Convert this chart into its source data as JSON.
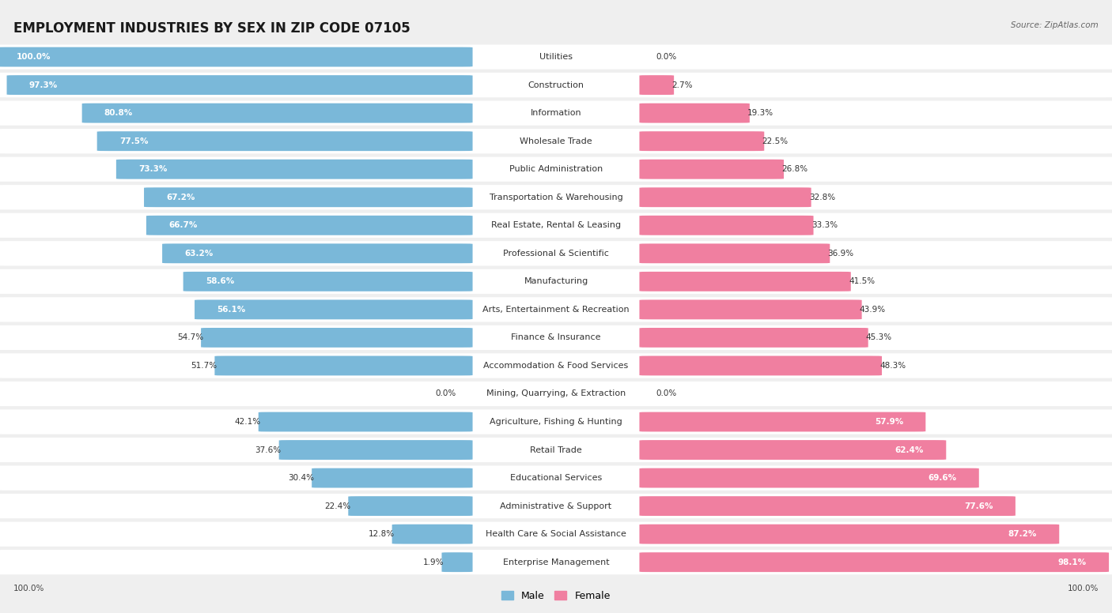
{
  "title": "EMPLOYMENT INDUSTRIES BY SEX IN ZIP CODE 07105",
  "source": "Source: ZipAtlas.com",
  "categories": [
    "Utilities",
    "Construction",
    "Information",
    "Wholesale Trade",
    "Public Administration",
    "Transportation & Warehousing",
    "Real Estate, Rental & Leasing",
    "Professional & Scientific",
    "Manufacturing",
    "Arts, Entertainment & Recreation",
    "Finance & Insurance",
    "Accommodation & Food Services",
    "Mining, Quarrying, & Extraction",
    "Agriculture, Fishing & Hunting",
    "Retail Trade",
    "Educational Services",
    "Administrative & Support",
    "Health Care & Social Assistance",
    "Enterprise Management"
  ],
  "male": [
    100.0,
    97.3,
    80.8,
    77.5,
    73.3,
    67.2,
    66.7,
    63.2,
    58.6,
    56.1,
    54.7,
    51.7,
    0.0,
    42.1,
    37.6,
    30.4,
    22.4,
    12.8,
    1.9
  ],
  "female": [
    0.0,
    2.7,
    19.3,
    22.5,
    26.8,
    32.8,
    33.3,
    36.9,
    41.5,
    43.9,
    45.3,
    48.3,
    0.0,
    57.9,
    62.4,
    69.6,
    77.6,
    87.2,
    98.1
  ],
  "male_color": "#7ab8d9",
  "female_color": "#f07fa0",
  "background_color": "#efefef",
  "title_fontsize": 12,
  "label_fontsize": 8,
  "pct_fontsize": 7.5
}
